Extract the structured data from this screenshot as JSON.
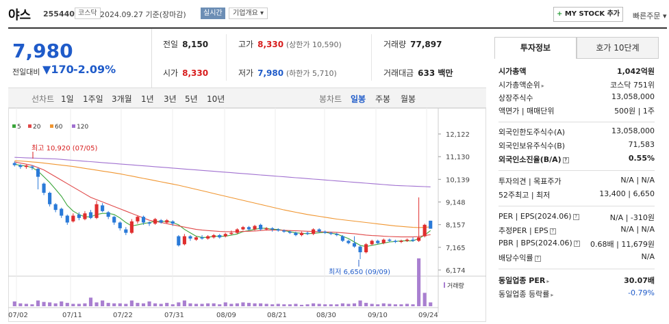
{
  "header": {
    "title": "야스",
    "code": "255440",
    "market": "코스닥",
    "date": "2024.09.27 기준(장마감)",
    "realtime": "실시간",
    "overview": "기업개요",
    "overview_arrow": "▾",
    "mystock_plus": "+",
    "mystock": "MY STOCK 추가",
    "quick_order": "빠른주문",
    "quick_order_arrow": "▾"
  },
  "price": {
    "current": "7,980",
    "change_label": "전일대비",
    "change_arrow": "▼",
    "change": "170",
    "change_pct": "-2.09%"
  },
  "quotes": {
    "prev_label": "전일",
    "prev": "8,150",
    "high_label": "고가",
    "high": "8,330",
    "upper_limit": "(상한가 10,590)",
    "volume_label": "거래량",
    "volume": "77,897",
    "open_label": "시가",
    "open": "8,330",
    "low_label": "저가",
    "low": "7,980",
    "lower_limit": "(하한가 5,710)",
    "amount_label": "거래대금",
    "amount": "633 백만"
  },
  "periods": {
    "line_label": "선차트",
    "items": [
      "1일",
      "1주일",
      "3개월",
      "1년",
      "3년",
      "5년",
      "10년"
    ],
    "candle_label": "봉차트",
    "candle_items": [
      "일봉",
      "주봉",
      "월봉"
    ],
    "active_candle": "일봉"
  },
  "chart_data": {
    "type": "candlestick",
    "legend": [
      "5",
      "20",
      "60",
      "120"
    ],
    "legend_colors": [
      "#3aa53a",
      "#e04848",
      "#f0952f",
      "#a070d0"
    ],
    "y_ticks": [
      "12,122",
      "11,130",
      "10,139",
      "9,148",
      "8,157",
      "7,165",
      "6,174"
    ],
    "ylim": [
      6174,
      12122
    ],
    "x_ticks": [
      "07/02",
      "07/11",
      "07/22",
      "07/31",
      "08/09",
      "08/21",
      "08/30",
      "09/10",
      "09/24"
    ],
    "high_annotation": "최고 10,920 (07/05)",
    "low_annotation": "최저 6,650 (09/09)",
    "volume_label": "거래량",
    "candles": [
      {
        "o": 10850,
        "c": 10760,
        "h": 10920,
        "l": 10700
      },
      {
        "o": 10760,
        "c": 10680,
        "h": 10800,
        "l": 10600
      },
      {
        "o": 10680,
        "c": 10740,
        "h": 10780,
        "l": 10600
      },
      {
        "o": 10700,
        "c": 10650,
        "h": 10760,
        "l": 10550
      },
      {
        "o": 10600,
        "c": 10250,
        "h": 10650,
        "l": 9700
      },
      {
        "o": 9950,
        "c": 9550,
        "h": 10000,
        "l": 9450
      },
      {
        "o": 9550,
        "c": 9050,
        "h": 9600,
        "l": 8950
      },
      {
        "o": 9050,
        "c": 8800,
        "h": 9100,
        "l": 8700
      },
      {
        "o": 8850,
        "c": 8550,
        "h": 8900,
        "l": 8450
      },
      {
        "o": 8550,
        "c": 8250,
        "h": 8600,
        "l": 8150
      },
      {
        "o": 8300,
        "c": 8550,
        "h": 8650,
        "l": 8250
      },
      {
        "o": 8600,
        "c": 8450,
        "h": 8700,
        "l": 8350
      },
      {
        "o": 8400,
        "c": 8650,
        "h": 8750,
        "l": 8350
      },
      {
        "o": 8700,
        "c": 8450,
        "h": 8800,
        "l": 8400
      },
      {
        "o": 8450,
        "c": 9050,
        "h": 9200,
        "l": 8400
      },
      {
        "o": 9000,
        "c": 8750,
        "h": 9100,
        "l": 8700
      },
      {
        "o": 8700,
        "c": 8500,
        "h": 8750,
        "l": 8400
      },
      {
        "o": 8500,
        "c": 8250,
        "h": 8550,
        "l": 8150
      },
      {
        "o": 8250,
        "c": 8000,
        "h": 8300,
        "l": 7900
      },
      {
        "o": 7950,
        "c": 7800,
        "h": 8050,
        "l": 7700
      },
      {
        "o": 7800,
        "c": 8300,
        "h": 8400,
        "l": 7750
      },
      {
        "o": 8300,
        "c": 8500,
        "h": 8550,
        "l": 8200
      },
      {
        "o": 8500,
        "c": 8250,
        "h": 8550,
        "l": 8150
      },
      {
        "o": 8250,
        "c": 8200,
        "h": 8300,
        "l": 8100
      },
      {
        "o": 8200,
        "c": 8400,
        "h": 8450,
        "l": 8150
      },
      {
        "o": 8350,
        "c": 8250,
        "h": 8400,
        "l": 8200
      },
      {
        "o": 8250,
        "c": 8350,
        "h": 8400,
        "l": 8200
      },
      {
        "o": 8300,
        "c": 8200,
        "h": 8350,
        "l": 8100
      },
      {
        "o": 7650,
        "c": 7250,
        "h": 7700,
        "l": 7200
      },
      {
        "o": 7300,
        "c": 7650,
        "h": 7750,
        "l": 7250
      },
      {
        "o": 7650,
        "c": 7550,
        "h": 7700,
        "l": 7450
      },
      {
        "o": 7500,
        "c": 7600,
        "h": 7650,
        "l": 7450
      },
      {
        "o": 7600,
        "c": 7550,
        "h": 7700,
        "l": 7500
      },
      {
        "o": 7550,
        "c": 7650,
        "h": 7700,
        "l": 7500
      },
      {
        "o": 7600,
        "c": 7700,
        "h": 7750,
        "l": 7550
      },
      {
        "o": 7700,
        "c": 7600,
        "h": 7750,
        "l": 7550
      },
      {
        "o": 7650,
        "c": 7750,
        "h": 7800,
        "l": 7600
      },
      {
        "o": 7750,
        "c": 7800,
        "h": 7900,
        "l": 7700
      },
      {
        "o": 7800,
        "c": 7950,
        "h": 8000,
        "l": 7750
      },
      {
        "o": 7950,
        "c": 8050,
        "h": 8100,
        "l": 7900
      },
      {
        "o": 8050,
        "c": 7950,
        "h": 8100,
        "l": 7900
      },
      {
        "o": 7950,
        "c": 8100,
        "h": 8150,
        "l": 7900
      },
      {
        "o": 8150,
        "c": 7950,
        "h": 8200,
        "l": 7900
      },
      {
        "o": 7950,
        "c": 8000,
        "h": 8050,
        "l": 7900
      },
      {
        "o": 8000,
        "c": 7950,
        "h": 8050,
        "l": 7850
      },
      {
        "o": 7950,
        "c": 7900,
        "h": 8000,
        "l": 7850
      },
      {
        "o": 7900,
        "c": 7850,
        "h": 7950,
        "l": 7800
      },
      {
        "o": 7850,
        "c": 7800,
        "h": 7900,
        "l": 7750
      },
      {
        "o": 7800,
        "c": 7700,
        "h": 7850,
        "l": 7650
      },
      {
        "o": 7700,
        "c": 7800,
        "h": 7850,
        "l": 7650
      },
      {
        "o": 7800,
        "c": 7750,
        "h": 7850,
        "l": 7700
      },
      {
        "o": 7750,
        "c": 7950,
        "h": 8000,
        "l": 7700
      },
      {
        "o": 7950,
        "c": 7850,
        "h": 8000,
        "l": 7800
      },
      {
        "o": 7850,
        "c": 7800,
        "h": 7900,
        "l": 7750
      },
      {
        "o": 7800,
        "c": 7750,
        "h": 7850,
        "l": 7700
      },
      {
        "o": 7750,
        "c": 7700,
        "h": 7800,
        "l": 7650
      },
      {
        "o": 7650,
        "c": 7450,
        "h": 7700,
        "l": 7400
      },
      {
        "o": 7450,
        "c": 7350,
        "h": 7500,
        "l": 7300
      },
      {
        "o": 7350,
        "c": 7200,
        "h": 7650,
        "l": 7150
      },
      {
        "o": 7200,
        "c": 6950,
        "h": 7250,
        "l": 6650
      },
      {
        "o": 6950,
        "c": 7300,
        "h": 7350,
        "l": 6900
      },
      {
        "o": 7300,
        "c": 7450,
        "h": 7500,
        "l": 7250
      },
      {
        "o": 7450,
        "c": 7350,
        "h": 7500,
        "l": 7300
      },
      {
        "o": 7350,
        "c": 7500,
        "h": 7550,
        "l": 7300
      },
      {
        "o": 7500,
        "c": 7450,
        "h": 7550,
        "l": 7400
      },
      {
        "o": 7450,
        "c": 7400,
        "h": 7500,
        "l": 7350
      },
      {
        "o": 7400,
        "c": 7450,
        "h": 7500,
        "l": 7350
      },
      {
        "o": 7450,
        "c": 7500,
        "h": 7550,
        "l": 7400
      },
      {
        "o": 7500,
        "c": 7450,
        "h": 7600,
        "l": 7400
      },
      {
        "o": 7450,
        "c": 7600,
        "h": 9350,
        "l": 7400
      },
      {
        "o": 7650,
        "c": 8150,
        "h": 8200,
        "l": 7600
      },
      {
        "o": 8330,
        "c": 7980,
        "h": 8330,
        "l": 7980
      }
    ],
    "volumes": [
      10,
      6,
      5,
      4,
      12,
      9,
      8,
      6,
      10,
      7,
      5,
      5,
      6,
      18,
      8,
      12,
      7,
      6,
      6,
      5,
      12,
      7,
      6,
      10,
      6,
      5,
      7,
      4,
      8,
      12,
      6,
      5,
      5,
      6,
      6,
      4,
      8,
      5,
      6,
      8,
      7,
      6,
      6,
      5,
      4,
      5,
      4,
      4,
      5,
      3,
      4,
      6,
      5,
      4,
      4,
      4,
      6,
      5,
      6,
      12,
      7,
      5,
      4,
      6,
      5,
      4,
      4,
      5,
      4,
      100,
      28,
      8
    ],
    "ma5": [
      10800,
      10750,
      10720,
      10650,
      10500,
      10250,
      10000,
      9700,
      9400,
      9000,
      8750,
      8600,
      8500,
      8500,
      8600,
      8650,
      8650,
      8600,
      8450,
      8250,
      8100,
      8150,
      8200,
      8250,
      8300,
      8300,
      8300,
      8250,
      8150,
      7950,
      7800,
      7650,
      7600,
      7600,
      7650,
      7650,
      7650,
      7700,
      7750,
      7850,
      7900,
      7950,
      8000,
      8000,
      7950,
      7950,
      7900,
      7850,
      7800,
      7780,
      7760,
      7780,
      7800,
      7820,
      7780,
      7750,
      7650,
      7550,
      7400,
      7250,
      7200,
      7250,
      7300,
      7350,
      7400,
      7420,
      7450,
      7450,
      7450,
      7550,
      7700,
      7900
    ],
    "ma20": [
      10900,
      10850,
      10800,
      10750,
      10650,
      10550,
      10400,
      10250,
      10100,
      9950,
      9800,
      9650,
      9500,
      9350,
      9250,
      9150,
      9050,
      8950,
      8850,
      8750,
      8650,
      8550,
      8450,
      8350,
      8300,
      8250,
      8200,
      8150,
      8100,
      8050,
      8000,
      7950,
      7920,
      7900,
      7880,
      7860,
      7850,
      7850,
      7850,
      7860,
      7870,
      7880,
      7900,
      7920,
      7920,
      7920,
      7910,
      7900,
      7890,
      7880,
      7870,
      7860,
      7850,
      7840,
      7830,
      7820,
      7800,
      7780,
      7760,
      7730,
      7700,
      7680,
      7670,
      7650,
      7640,
      7630,
      7620,
      7620,
      7620,
      7640,
      7680,
      7720
    ],
    "ma60": [
      10950,
      10940,
      10920,
      10900,
      10880,
      10850,
      10820,
      10790,
      10760,
      10730,
      10700,
      10660,
      10620,
      10580,
      10540,
      10500,
      10460,
      10420,
      10380,
      10330,
      10280,
      10230,
      10180,
      10130,
      10080,
      10030,
      9980,
      9930,
      9880,
      9820,
      9760,
      9700,
      9640,
      9580,
      9520,
      9460,
      9400,
      9340,
      9280,
      9220,
      9160,
      9100,
      9040,
      8980,
      8920,
      8860,
      8800,
      8750,
      8700,
      8650,
      8600,
      8560,
      8520,
      8480,
      8440,
      8400,
      8370,
      8340,
      8310,
      8280,
      8250,
      8220,
      8190,
      8160,
      8130,
      8100,
      8080,
      8060,
      8040,
      8030,
      8040,
      8060
    ],
    "ma120": [
      11100,
      11090,
      11080,
      11070,
      11060,
      11050,
      11040,
      11030,
      11010,
      10990,
      10970,
      10950,
      10930,
      10910,
      10890,
      10870,
      10850,
      10830,
      10810,
      10790,
      10770,
      10750,
      10730,
      10710,
      10690,
      10670,
      10650,
      10630,
      10610,
      10590,
      10570,
      10550,
      10530,
      10510,
      10490,
      10470,
      10450,
      10430,
      10410,
      10390,
      10370,
      10350,
      10330,
      10310,
      10290,
      10270,
      10250,
      10230,
      10210,
      10190,
      10170,
      10150,
      10130,
      10110,
      10090,
      10070,
      10050,
      10030,
      10010,
      9990,
      9970,
      9950,
      9930,
      9910,
      9890,
      9870,
      9860,
      9850,
      9840,
      9830,
      9820,
      9810
    ]
  },
  "info_tabs": {
    "active": "투자정보",
    "other": "호가 10단계"
  },
  "info": {
    "market_cap_label": "시가총액",
    "market_cap": "1,042억원",
    "market_cap_rank_label": "시가총액순위",
    "market_cap_rank": "코스닥 751위",
    "listed_shares_label": "상장주식수",
    "listed_shares": "13,058,000",
    "par_label": "액면가 | 매매단위",
    "par": "500원 | 1주",
    "foreign_limit_label": "외국인한도주식수(A)",
    "foreign_limit": "13,058,000",
    "foreign_hold_label": "외국인보유주식수(B)",
    "foreign_hold": "71,583",
    "foreign_ratio_label": "외국인소진율(B/A)",
    "foreign_ratio": "0.55%",
    "opinion_label": "투자의견 | 목표주가",
    "opinion": "N/A",
    "target": "N/A",
    "w52_label": "52주최고 | 최저",
    "w52_high": "13,400",
    "w52_low": "6,650",
    "per_label": "PER | EPS(2024.06)",
    "per": "N/A",
    "eps": "-310원",
    "est_per_label": "추정PER | EPS",
    "est_per": "N/A",
    "est_eps": "N/A",
    "pbr_label": "PBR | BPS(2024.06)",
    "pbr": "0.68배",
    "bps": "11,679원",
    "dividend_label": "배당수익률",
    "dividend": "N/A",
    "industry_per_label": "동일업종 PER",
    "industry_per": "30.07배",
    "industry_rate_label": "동일업종 등락률",
    "industry_rate": "-0.79%",
    "q_mark": "?",
    "arrow_mark": "▸",
    "sep": "|"
  }
}
